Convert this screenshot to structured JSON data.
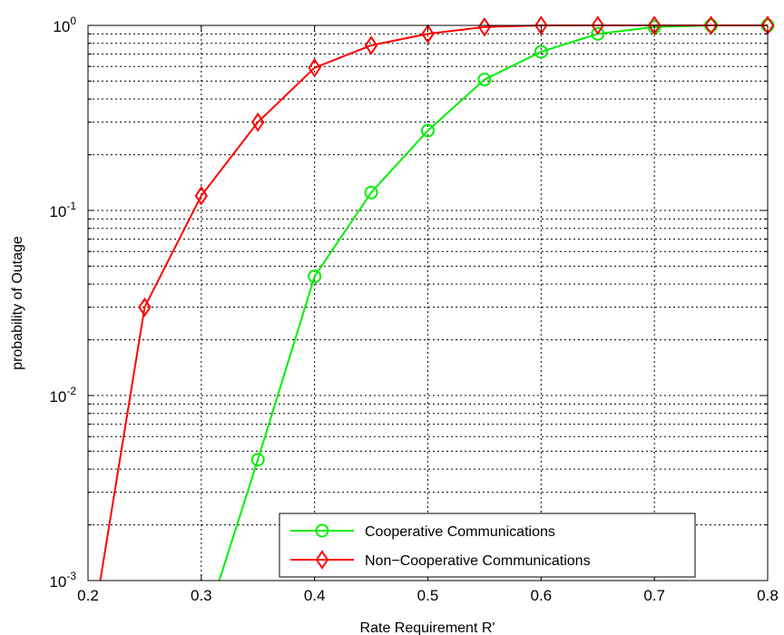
{
  "chart_data": {
    "type": "line",
    "xlabel": "Rate Requirement  R'",
    "ylabel": "probability of Outage",
    "xlim": [
      0.2,
      0.8
    ],
    "ylim": [
      0.001,
      1
    ],
    "yscale": "log",
    "grid": true,
    "legend_position": "bottom-right",
    "x_ticks": [
      {
        "value": 0.2,
        "label": "0.2"
      },
      {
        "value": 0.3,
        "label": "0.3"
      },
      {
        "value": 0.4,
        "label": "0.4"
      },
      {
        "value": 0.5,
        "label": "0.5"
      },
      {
        "value": 0.6,
        "label": "0.6"
      },
      {
        "value": 0.7,
        "label": "0.7"
      },
      {
        "value": 0.8,
        "label": "0.8"
      }
    ],
    "y_ticks": [
      {
        "value": 0.001,
        "base": "10",
        "exp": "-3"
      },
      {
        "value": 0.01,
        "base": "10",
        "exp": "-2"
      },
      {
        "value": 0.1,
        "base": "10",
        "exp": "-1"
      },
      {
        "value": 1,
        "base": "10",
        "exp": "0"
      }
    ],
    "series": [
      {
        "name": "Cooperative Communications",
        "color": "#00ee00",
        "marker": "circle",
        "x": [
          0.3158,
          0.35,
          0.4,
          0.45,
          0.5,
          0.55,
          0.6,
          0.65,
          0.7,
          0.75,
          0.8
        ],
        "y": [
          0.001,
          0.0045,
          0.044,
          0.125,
          0.27,
          0.51,
          0.72,
          0.9,
          0.98,
          1.0,
          1.0
        ],
        "marker_x": [
          0.35,
          0.4,
          0.45,
          0.5,
          0.55,
          0.6,
          0.65,
          0.7,
          0.75,
          0.8
        ]
      },
      {
        "name": "Non-Cooperative Communications",
        "color": "#ff0000",
        "marker": "diamond",
        "x": [
          0.2108,
          0.25,
          0.3,
          0.35,
          0.4,
          0.45,
          0.5,
          0.55,
          0.6,
          0.65,
          0.7,
          0.75,
          0.8
        ],
        "y": [
          0.001,
          0.03,
          0.12,
          0.3,
          0.59,
          0.78,
          0.9,
          0.98,
          1.0,
          1.0,
          1.0,
          1.0,
          1.0
        ],
        "marker_x": [
          0.25,
          0.3,
          0.35,
          0.4,
          0.45,
          0.5,
          0.55,
          0.6,
          0.65,
          0.7,
          0.75,
          0.8
        ]
      }
    ],
    "legend": {
      "entries": [
        "Cooperative Communications",
        "Non−Cooperative Communications"
      ]
    }
  }
}
